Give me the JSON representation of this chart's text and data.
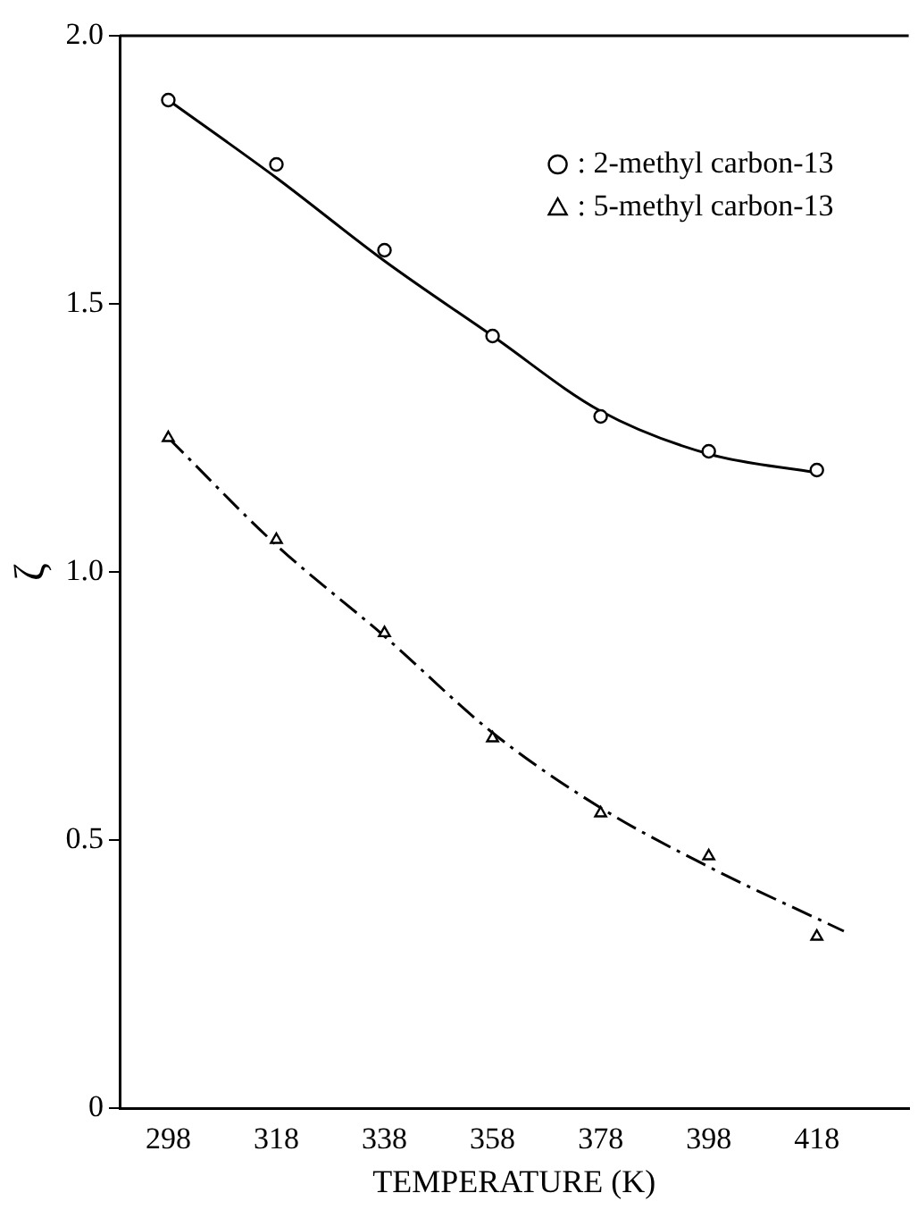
{
  "chart_data": {
    "type": "scatter",
    "xlabel": "TEMPERATURE (K)",
    "ylabel": "ζ",
    "xlim": [
      289,
      435
    ],
    "xticks": [
      298,
      318,
      338,
      358,
      378,
      398,
      418
    ],
    "ylim": [
      0,
      2
    ],
    "yticks": [
      0,
      {
        "value": 0.5,
        "label": "0.5"
      },
      {
        "value": 1,
        "label": "1.0"
      },
      {
        "value": 1.5,
        "label": "1.5"
      },
      {
        "value": 2,
        "label": "2.0"
      }
    ],
    "grid": false,
    "legend": "top right",
    "series": [
      {
        "name": ": 2-methyl carbon-13",
        "marker": "circle",
        "color": "#000000",
        "x": [
          298,
          318,
          338,
          358,
          378,
          398,
          418
        ],
        "values": [
          1.88,
          1.76,
          1.6,
          1.44,
          1.29,
          1.225,
          1.19
        ]
      },
      {
        "name": ": 5-methyl carbon-13",
        "marker": "triangle",
        "color": "#000000",
        "x": [
          298,
          318,
          338,
          358,
          378,
          398,
          418
        ],
        "values": [
          1.25,
          1.06,
          0.886,
          0.69,
          0.55,
          0.47,
          0.32
        ]
      },
      {
        "type": "line",
        "marker": "none",
        "line_style": "solid",
        "color": "#000000",
        "x": [
          298,
          318,
          338,
          358,
          378,
          398,
          418
        ],
        "values": [
          1.88,
          1.735,
          1.58,
          1.44,
          1.3,
          1.22,
          1.185
        ]
      },
      {
        "type": "line",
        "marker": "none",
        "line_style": "dashed",
        "color": "#000000",
        "x": [
          298,
          318,
          338,
          358,
          378,
          398,
          423
        ],
        "values": [
          1.25,
          1.05,
          0.88,
          0.7,
          0.56,
          0.45,
          0.33
        ]
      }
    ]
  }
}
